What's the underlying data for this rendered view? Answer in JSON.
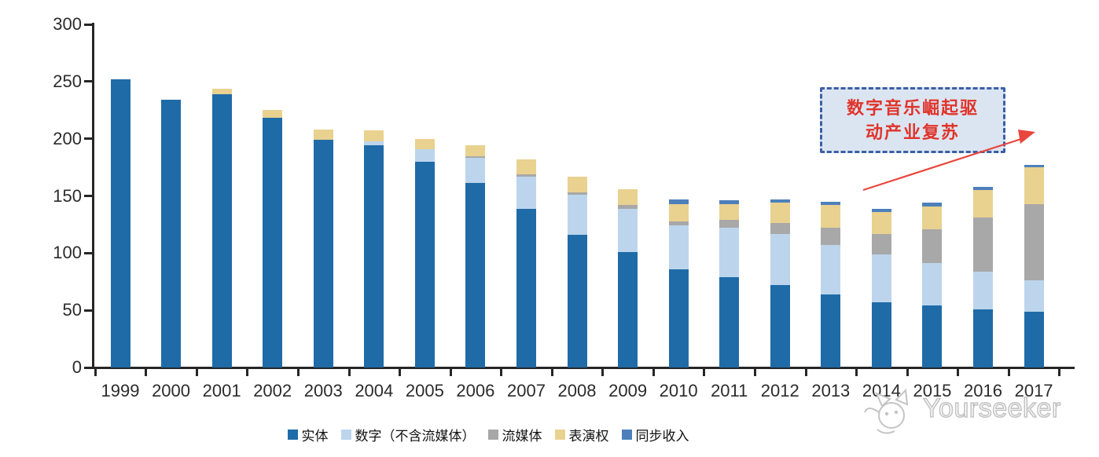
{
  "chart_data": {
    "type": "bar",
    "stacked": true,
    "categories": [
      "1999",
      "2000",
      "2001",
      "2002",
      "2003",
      "2004",
      "2005",
      "2006",
      "2007",
      "2008",
      "2009",
      "2010",
      "2011",
      "2012",
      "2013",
      "2014",
      "2015",
      "2016",
      "2017"
    ],
    "series": [
      {
        "name": "实体",
        "color": "#1f6ba8",
        "values": [
          252,
          234,
          239,
          218,
          199,
          194,
          180,
          161,
          139,
          116,
          101,
          86,
          79,
          72,
          64,
          57,
          54,
          51,
          49
        ]
      },
      {
        "name": "数字（不含流媒体）",
        "color": "#bcd5ec",
        "values": [
          0,
          0,
          0,
          0,
          0,
          4,
          11,
          22,
          28,
          35,
          38,
          38,
          43,
          45,
          43,
          42,
          37,
          33,
          27
        ]
      },
      {
        "name": "流媒体",
        "color": "#a8a8a8",
        "values": [
          0,
          0,
          0,
          0,
          0,
          0,
          0,
          2,
          2,
          2,
          3,
          4,
          7,
          9,
          15,
          18,
          30,
          47,
          67
        ]
      },
      {
        "name": "表演权",
        "color": "#e9d18f",
        "values": [
          0,
          0,
          5,
          7,
          9,
          9,
          9,
          9,
          13,
          14,
          14,
          15,
          14,
          18,
          20,
          19,
          20,
          24,
          32
        ]
      },
      {
        "name": "同步收入",
        "color": "#4d80bb",
        "values": [
          0,
          0,
          0,
          0,
          0,
          0,
          0,
          0,
          0,
          0,
          0,
          4,
          3,
          3,
          3,
          3,
          3,
          3,
          2
        ]
      }
    ],
    "ylim": [
      0,
      300
    ],
    "yticks": [
      "0",
      "50",
      "100",
      "150",
      "200",
      "250",
      "300"
    ],
    "grid": false,
    "legend_position": "bottom",
    "axis_color": "#262626"
  },
  "annotation": {
    "line1": "数字音乐崛起驱",
    "line2": "动产业复苏",
    "box_fill": "#dbe5f2",
    "box_border": "#3b5ea6",
    "text_color": "#e0342b",
    "arrow_color": "#e9463d"
  },
  "watermark": {
    "text": "Yourseeker",
    "color": "#c4c4c4"
  }
}
